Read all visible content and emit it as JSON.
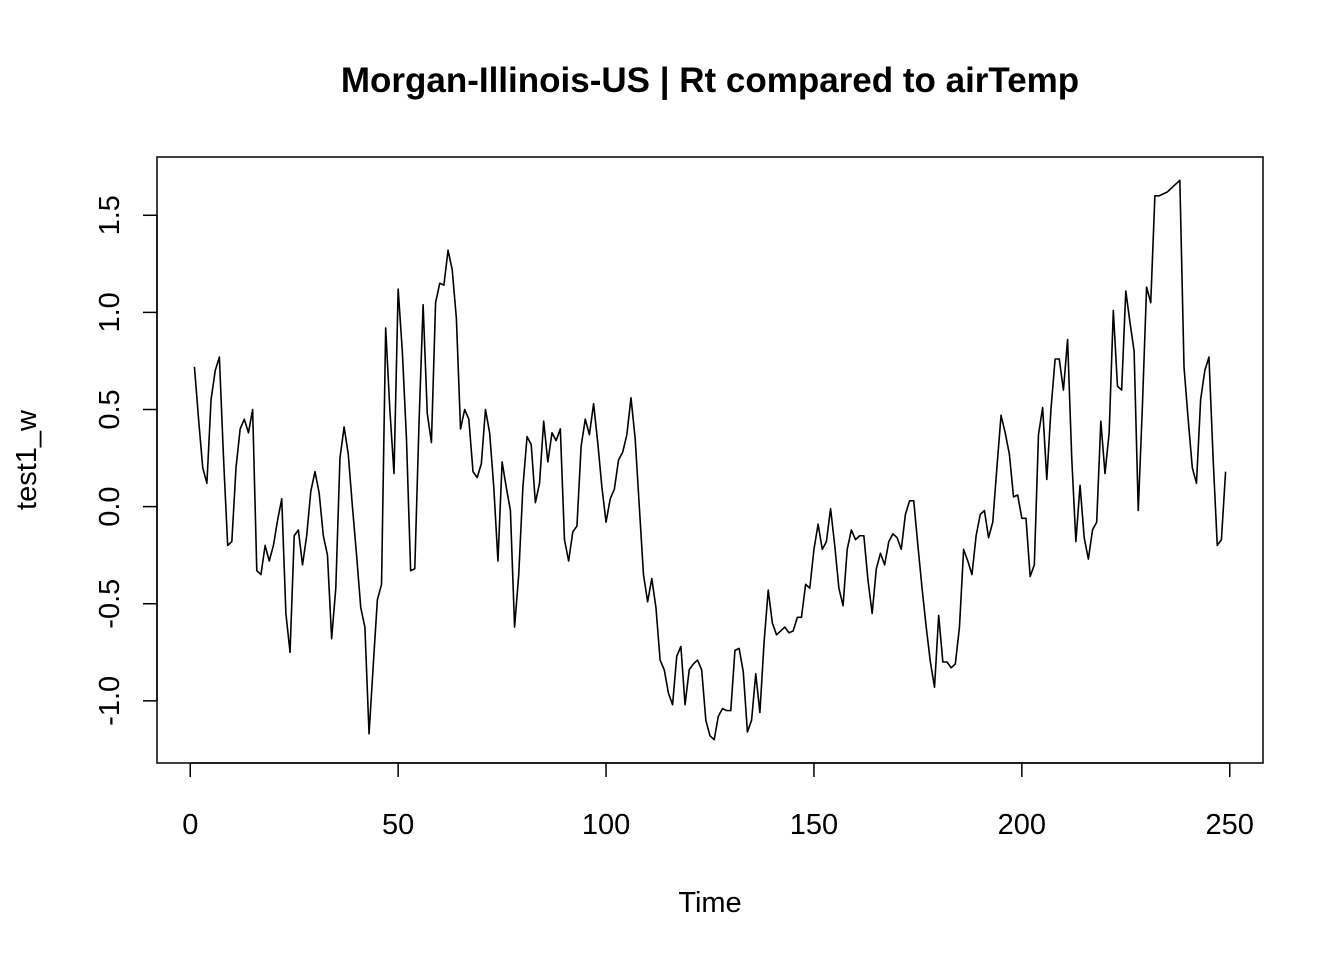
{
  "chart_data": {
    "type": "line",
    "title": "Morgan-Illinois-US | Rt compared to airTemp",
    "xlabel": "Time",
    "ylabel": "test1_w",
    "xlim": [
      -8,
      258
    ],
    "ylim": [
      -1.32,
      1.8
    ],
    "x_ticks": [
      0,
      50,
      100,
      150,
      200,
      250
    ],
    "x_tick_labels": [
      "0",
      "50",
      "100",
      "150",
      "200",
      "250"
    ],
    "y_ticks": [
      -1.0,
      -0.5,
      0.0,
      0.5,
      1.0,
      1.5
    ],
    "y_tick_labels": [
      "-1.0",
      "-0.5",
      "0.0",
      "0.5",
      "1.0",
      "1.5"
    ],
    "grid": false,
    "x_start": 1,
    "series": [
      {
        "values": [
          0.72,
          0.45,
          0.2,
          0.12,
          0.55,
          0.7,
          0.77,
          0.25,
          -0.2,
          -0.18,
          0.2,
          0.4,
          0.45,
          0.38,
          0.5,
          -0.33,
          -0.35,
          -0.2,
          -0.28,
          -0.2,
          -0.07,
          0.04,
          -0.55,
          -0.75,
          -0.15,
          -0.12,
          -0.3,
          -0.15,
          0.08,
          0.18,
          0.07,
          -0.15,
          -0.25,
          -0.68,
          -0.42,
          0.25,
          0.41,
          0.27,
          0.0,
          -0.25,
          -0.52,
          -0.62,
          -1.17,
          -0.82,
          -0.48,
          -0.4,
          0.92,
          0.5,
          0.17,
          1.12,
          0.8,
          0.35,
          -0.33,
          -0.32,
          0.42,
          1.04,
          0.48,
          0.33,
          1.05,
          1.15,
          1.14,
          1.32,
          1.22,
          0.97,
          0.4,
          0.5,
          0.45,
          0.18,
          0.15,
          0.22,
          0.5,
          0.38,
          0.1,
          -0.28,
          0.23,
          0.1,
          -0.02,
          -0.62,
          -0.35,
          0.1,
          0.36,
          0.32,
          0.02,
          0.12,
          0.44,
          0.23,
          0.38,
          0.34,
          0.4,
          -0.17,
          -0.28,
          -0.13,
          -0.1,
          0.31,
          0.45,
          0.37,
          0.53,
          0.33,
          0.1,
          -0.08,
          0.04,
          0.09,
          0.24,
          0.28,
          0.37,
          0.56,
          0.35,
          0.0,
          -0.35,
          -0.49,
          -0.37,
          -0.52,
          -0.79,
          -0.84,
          -0.96,
          -1.02,
          -0.77,
          -0.72,
          -1.02,
          -0.84,
          -0.81,
          -0.79,
          -0.84,
          -1.1,
          -1.18,
          -1.2,
          -1.08,
          -1.04,
          -1.05,
          -1.05,
          -0.74,
          -0.73,
          -0.85,
          -1.16,
          -1.1,
          -0.86,
          -1.06,
          -0.7,
          -0.43,
          -0.6,
          -0.66,
          -0.64,
          -0.62,
          -0.65,
          -0.64,
          -0.57,
          -0.57,
          -0.4,
          -0.42,
          -0.22,
          -0.09,
          -0.22,
          -0.18,
          -0.01,
          -0.2,
          -0.42,
          -0.51,
          -0.22,
          -0.12,
          -0.17,
          -0.15,
          -0.15,
          -0.38,
          -0.55,
          -0.32,
          -0.24,
          -0.3,
          -0.18,
          -0.14,
          -0.16,
          -0.22,
          -0.04,
          0.03,
          0.03,
          -0.2,
          -0.42,
          -0.62,
          -0.8,
          -0.93,
          -0.56,
          -0.8,
          -0.8,
          -0.83,
          -0.81,
          -0.62,
          -0.22,
          -0.28,
          -0.35,
          -0.15,
          -0.04,
          -0.02,
          -0.16,
          -0.08,
          0.2,
          0.47,
          0.38,
          0.27,
          0.05,
          0.06,
          -0.06,
          -0.06,
          -0.36,
          -0.3,
          0.37,
          0.51,
          0.14,
          0.5,
          0.76,
          0.76,
          0.6,
          0.86,
          0.25,
          -0.18,
          0.11,
          -0.16,
          -0.27,
          -0.12,
          -0.08,
          0.44,
          0.17,
          0.38,
          1.01,
          0.62,
          0.6,
          1.11,
          0.95,
          0.8,
          -0.02,
          0.52,
          1.13,
          1.05,
          1.6,
          1.6,
          1.61,
          1.62,
          1.64,
          1.66,
          1.68,
          0.72,
          0.45,
          0.2,
          0.12,
          0.55,
          0.7,
          0.77,
          0.25,
          -0.2,
          -0.17,
          0.18
        ]
      }
    ]
  }
}
